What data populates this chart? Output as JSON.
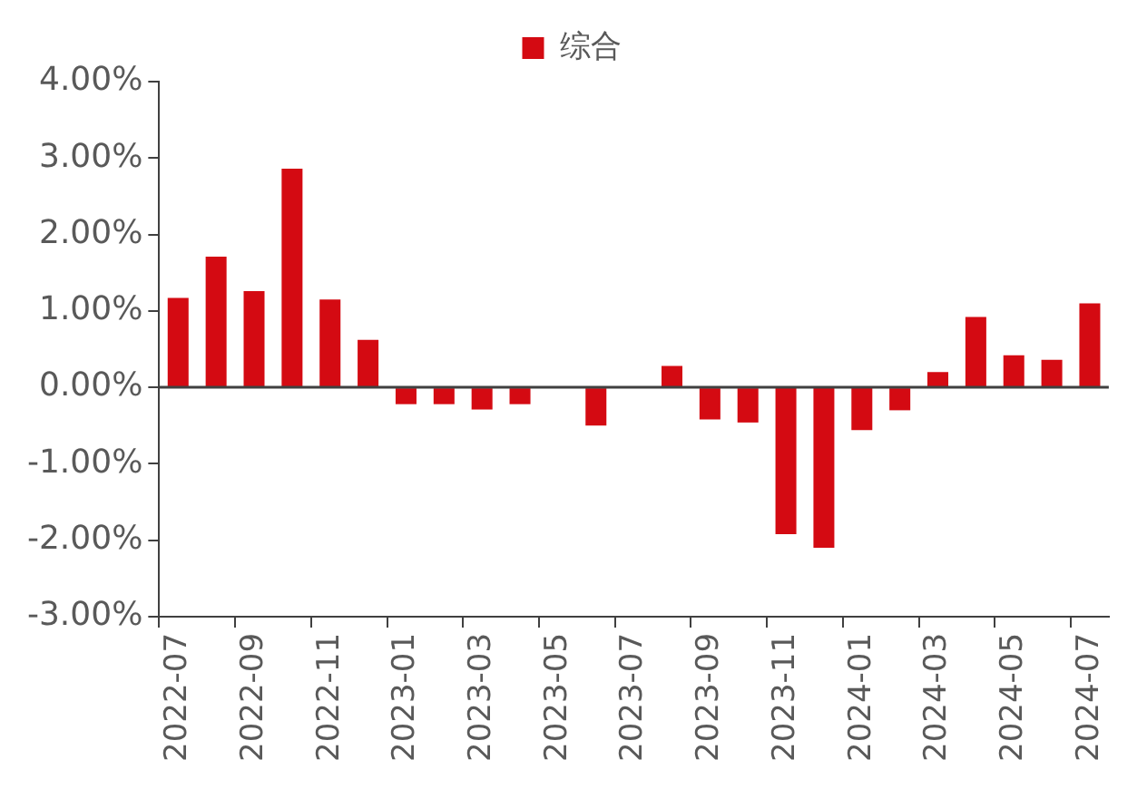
{
  "chart_data": {
    "type": "bar",
    "categories": [
      "2022-07",
      null,
      "2022-09",
      null,
      "2022-11",
      null,
      "2023-01",
      null,
      "2023-03",
      null,
      "2023-05",
      null,
      "2023-07",
      null,
      "2023-09",
      null,
      "2023-11",
      null,
      "2024-01",
      null,
      "2024-03",
      null,
      "2024-05",
      null,
      "2024-07"
    ],
    "series": [
      {
        "name": "综合",
        "color": "#d40a12",
        "values": [
          1.17,
          1.71,
          1.26,
          2.86,
          1.15,
          0.62,
          -0.22,
          -0.22,
          -0.29,
          -0.22,
          0,
          -0.5,
          0,
          0.28,
          -0.42,
          -0.46,
          -1.92,
          -2.1,
          -0.56,
          -0.3,
          0.2,
          0.92,
          0.42,
          0.36,
          1.1
        ]
      }
    ],
    "ylim": [
      -3,
      4
    ],
    "yticks": [
      {
        "value": -3,
        "label": "-3.00%"
      },
      {
        "value": -2,
        "label": "-2.00%"
      },
      {
        "value": -1,
        "label": "-1.00%"
      },
      {
        "value": 0,
        "label": "0.00%"
      },
      {
        "value": 1,
        "label": "1.00%"
      },
      {
        "value": 2,
        "label": "2.00%"
      },
      {
        "value": 3,
        "label": "3.00%"
      },
      {
        "value": 4,
        "label": "4.00%"
      }
    ],
    "ref_lines": [
      {
        "axis": "y",
        "value": 0,
        "color": "#404040"
      }
    ],
    "grid": false,
    "legend": "top"
  }
}
